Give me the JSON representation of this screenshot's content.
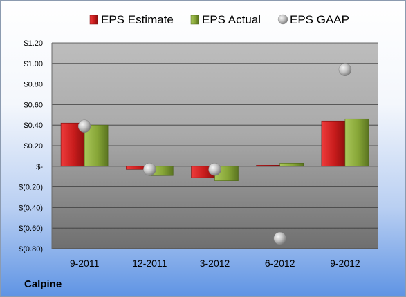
{
  "company": "Calpine",
  "legend": [
    {
      "label": "EPS Estimate",
      "icon": "red-bar-legend-icon",
      "color": "#cc1f1f"
    },
    {
      "label": "EPS Actual",
      "icon": "green-bar-legend-icon",
      "color": "#8aab3a"
    },
    {
      "label": "EPS GAAP",
      "icon": "gray-sphere-legend-icon",
      "color": "#a9a9a9"
    }
  ],
  "chart_data": {
    "type": "bar",
    "categories": [
      "9-2011",
      "12-2011",
      "3-2012",
      "6-2012",
      "9-2012"
    ],
    "series": [
      {
        "name": "EPS Estimate",
        "type": "bar",
        "values": [
          0.42,
          -0.03,
          -0.11,
          0.01,
          0.44
        ]
      },
      {
        "name": "EPS Actual",
        "type": "bar",
        "values": [
          0.4,
          -0.09,
          -0.14,
          0.03,
          0.46
        ]
      },
      {
        "name": "EPS GAAP",
        "type": "scatter",
        "values": [
          0.39,
          -0.03,
          -0.03,
          -0.7,
          0.94
        ]
      }
    ],
    "ylim": [
      -0.8,
      1.2
    ],
    "yticks": [
      1.2,
      1.0,
      0.8,
      0.6,
      0.4,
      0.2,
      0,
      -0.2,
      -0.4,
      -0.6,
      -0.8
    ],
    "ytick_labels": [
      "$1.20",
      "$1.00",
      "$0.80",
      "$0.60",
      "$0.40",
      "$0.20",
      "$-",
      "$(0.20)",
      "$(0.40)",
      "$(0.60)",
      "$(0.80)"
    ],
    "grid": true,
    "legend_position": "top"
  }
}
